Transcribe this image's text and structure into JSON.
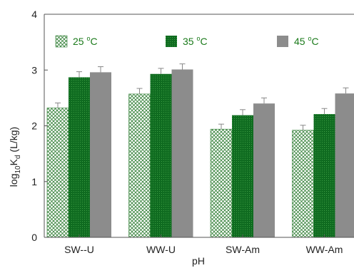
{
  "chart_data": {
    "type": "bar",
    "xlabel": "pH",
    "ylabel_main": "log",
    "ylabel_sub1": "10",
    "ylabel_mid": "K",
    "ylabel_sub2": "d",
    "ylabel_unit": " (L/kg)",
    "ylim": [
      0,
      4
    ],
    "yticks": [
      "0",
      "1",
      "2",
      "3",
      "4"
    ],
    "categories": [
      "SW--U",
      "WW-U",
      "SW-Am",
      "WW-Am"
    ],
    "series": [
      {
        "name": "25 °C",
        "name_base": "25 ",
        "name_sup": "o",
        "name_unit": "C",
        "values": [
          2.32,
          2.57,
          1.94,
          1.92
        ],
        "errors": [
          0.09,
          0.1,
          0.09,
          0.09
        ],
        "color": "#2e7d32",
        "pattern": "crosshatch"
      },
      {
        "name": "35 °C",
        "name_base": "35 ",
        "name_sup": "o",
        "name_unit": "C",
        "values": [
          2.87,
          2.93,
          2.19,
          2.21
        ],
        "errors": [
          0.1,
          0.1,
          0.1,
          0.1
        ],
        "color": "#0f6b20",
        "pattern": "dots"
      },
      {
        "name": "45 °C",
        "name_base": "45 ",
        "name_sup": "o",
        "name_unit": "C",
        "values": [
          2.96,
          3.01,
          2.4,
          2.58
        ],
        "errors": [
          0.1,
          0.1,
          0.1,
          0.1
        ],
        "color": "#8c8c8c",
        "pattern": "solid"
      }
    ],
    "legend_position": "top",
    "legend_text_color": "#1a7a1a",
    "grid": false
  }
}
